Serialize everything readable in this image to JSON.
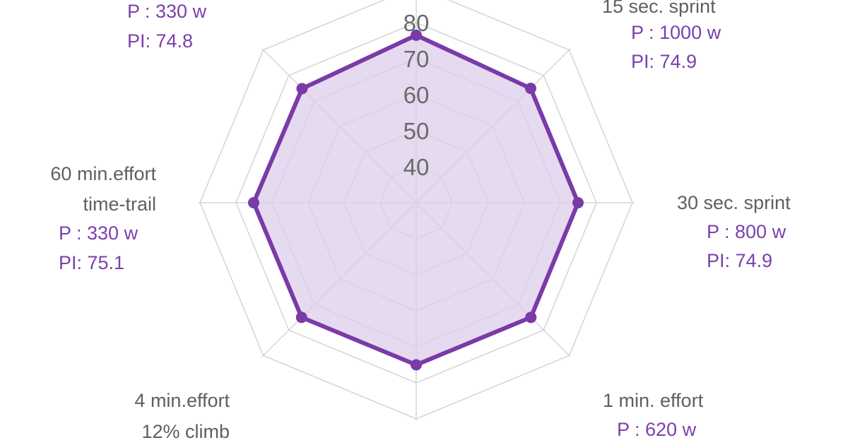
{
  "colors": {
    "accent": "#7a3aa8",
    "fill": "#dccdea",
    "grid": "#cfcfcf",
    "label_gray": "#5f5f5f",
    "label_purple": "#7b40ad",
    "tick": "#6a6a6a"
  },
  "chart_data": {
    "type": "radar",
    "ticks": [
      "40",
      "50",
      "60",
      "70",
      "80"
    ],
    "r_range": [
      30,
      90
    ],
    "axes": [
      {
        "id": "top",
        "lines": [],
        "value": 76.5
      },
      {
        "id": "15s",
        "lines": [
          "15 sec. sprint"
        ],
        "power": "P : 1000 w",
        "pi": "PI: 74.9",
        "value": 74.9
      },
      {
        "id": "30s",
        "lines": [
          "30 sec. sprint"
        ],
        "power": "P : 800 w",
        "pi": "PI: 74.9",
        "value": 74.9
      },
      {
        "id": "1min",
        "lines": [
          "1 min. effort"
        ],
        "power": "P : 620 w",
        "value": 75.0
      },
      {
        "id": "bottom",
        "lines": [],
        "value": 75.0
      },
      {
        "id": "4min",
        "lines": [
          "4 min.effort",
          "12% climb"
        ],
        "value": 75.0
      },
      {
        "id": "60min",
        "lines": [
          "60 min.effort",
          "time-trail"
        ],
        "power": "P : 330 w",
        "pi": "PI: 75.1",
        "value": 75.1
      },
      {
        "id": "20min",
        "lines": [],
        "power": "P : 330 w",
        "pi": "PI: 74.8",
        "value": 74.8
      }
    ]
  }
}
